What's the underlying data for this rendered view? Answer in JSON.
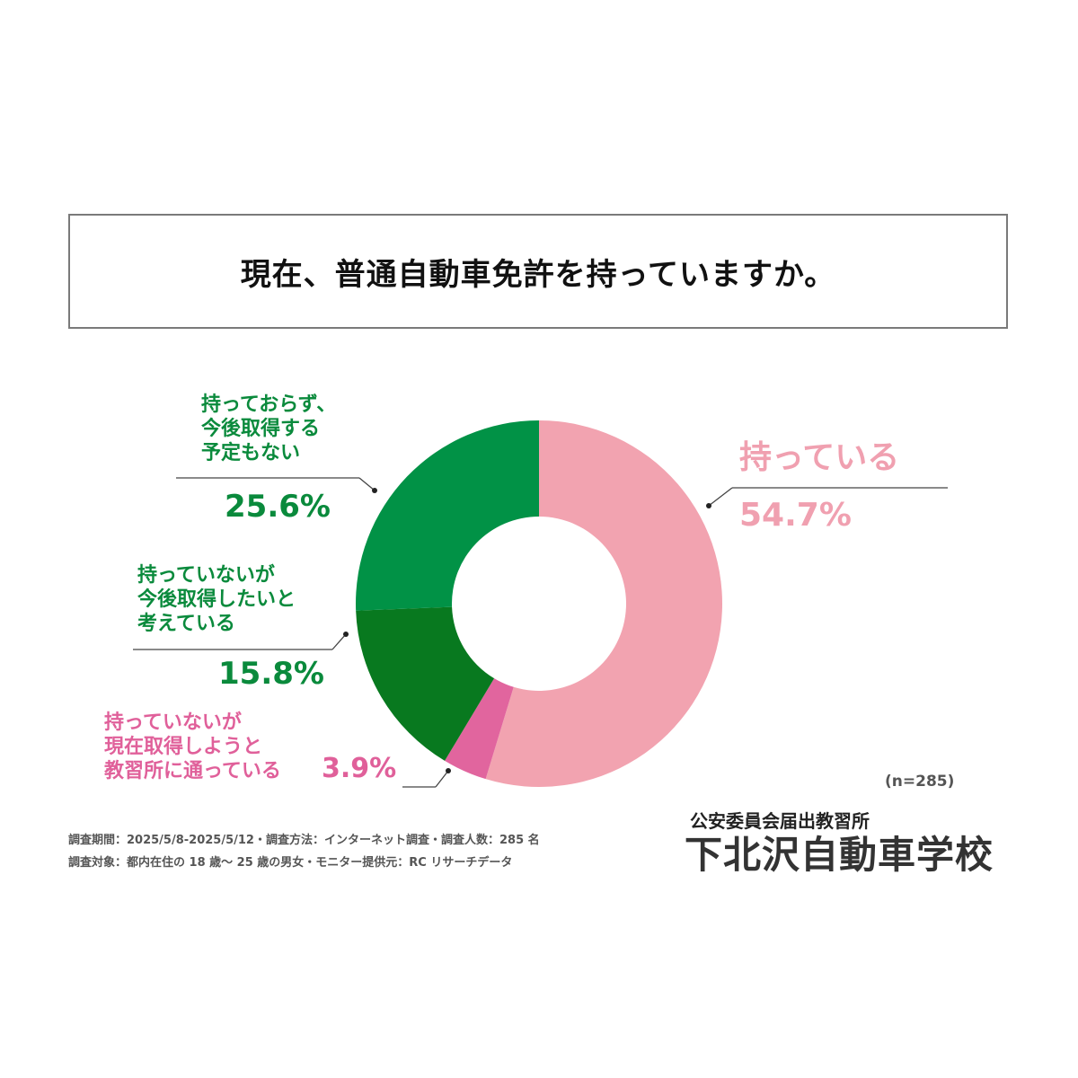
{
  "title": "現在、普通自動車免許を持っていますか。",
  "chart_data": {
    "type": "pie",
    "donut": true,
    "sample_size_label": "(n=285)",
    "slices": [
      {
        "label": "持っている",
        "value": 54.7,
        "value_label": "54.7%",
        "color": "#f2a3b0"
      },
      {
        "label": "持っていないが現在取得しようと教習所に通っている",
        "value": 3.9,
        "value_label": "3.9%",
        "color": "#e1659e"
      },
      {
        "label": "持っていないが今後取得したいと考えている",
        "value": 15.8,
        "value_label": "15.8%",
        "color": "#08791f"
      },
      {
        "label": "持っておらず、今後取得する予定もない",
        "value": 25.6,
        "value_label": "25.6%",
        "color": "#019246"
      }
    ]
  },
  "labels": {
    "have": {
      "text": "持っている",
      "pct": "54.7%"
    },
    "school": {
      "line1": "持っていないが",
      "line2": "現在取得しようと",
      "line3": "教習所に通っている",
      "pct": "3.9%"
    },
    "want": {
      "line1": "持っていないが",
      "line2": "今後取得したいと",
      "line3": "考えている",
      "pct": "15.8%"
    },
    "none": {
      "line1": "持っておらず、",
      "line2": "今後取得する",
      "line3": "予定もない",
      "pct": "25.6%"
    }
  },
  "footer": {
    "survey_line1": "調査期間：2025/5/8-2025/5/12・調査方法：インターネット調査・調査人数：285 名",
    "survey_line2": "調査対象：都内在住の 18 歳～ 25 歳の男女・モニター提供元：RC リサーチデータ",
    "school_sub": "公安委員会届出教習所",
    "school_name": "下北沢自動車学校"
  }
}
